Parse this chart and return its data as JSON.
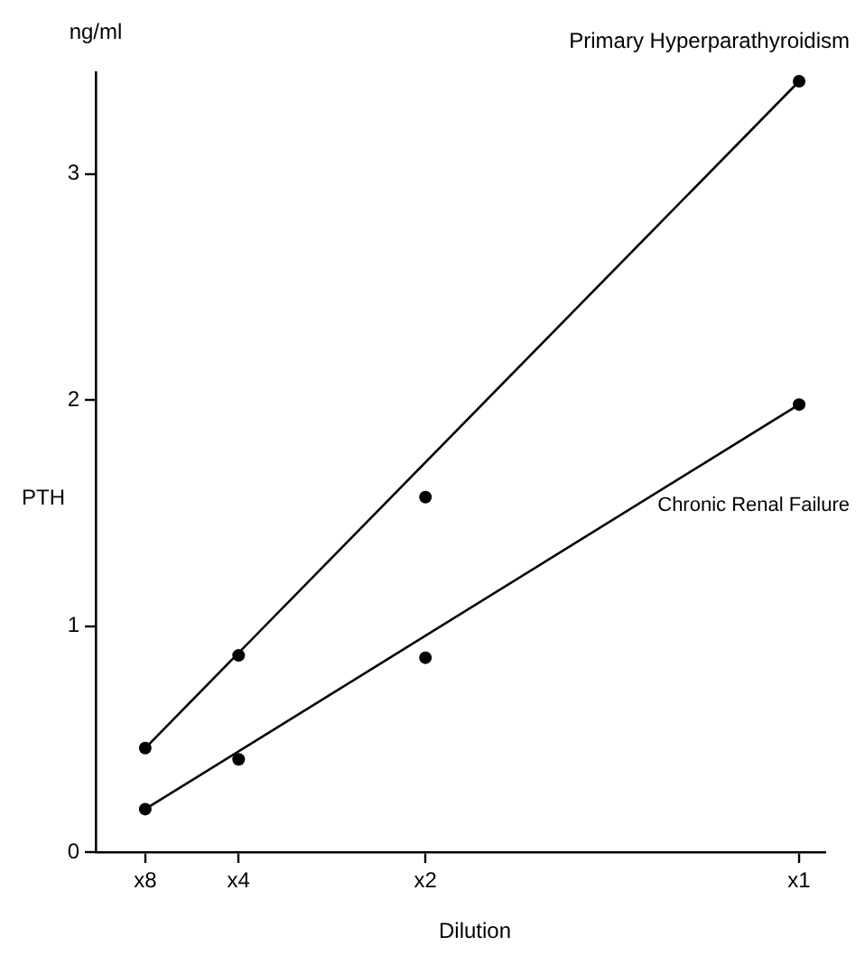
{
  "chart_data": {
    "type": "scatter",
    "xlabel": "Dilution",
    "ylabel": "PTH",
    "annotations": [
      "ng/ml"
    ],
    "categories": [
      "x8",
      "x4",
      null,
      "x2",
      null,
      null,
      null,
      "x1"
    ],
    "ylim": [
      0,
      3.45
    ],
    "yticks": [
      0,
      1,
      2,
      3
    ],
    "grid": false,
    "legend": false,
    "marker": "circle",
    "series": [
      {
        "color": "#000000",
        "x": [
          "x8",
          "x4",
          "x2",
          "x1"
        ],
        "values": [
          0.46,
          0.87,
          1.57,
          3.41
        ]
      },
      {
        "color": "#000000",
        "x": [
          "x8",
          "x4",
          "x2",
          "x1"
        ],
        "values": [
          0.19,
          0.41,
          0.86,
          1.98
        ]
      },
      {
        "name": "Primary Hyperparathyroidism",
        "type": "line",
        "color": "#000000",
        "line_style": "solid",
        "marker": "none",
        "x": [
          "x8",
          "x1"
        ],
        "values": [
          0.46,
          3.41
        ]
      },
      {
        "name": "Chronic Renal Failure",
        "type": "line",
        "color": "#000000",
        "line_style": "solid",
        "marker": "none",
        "x": [
          "x8",
          "x1"
        ],
        "values": [
          0.19,
          1.98
        ]
      }
    ]
  }
}
